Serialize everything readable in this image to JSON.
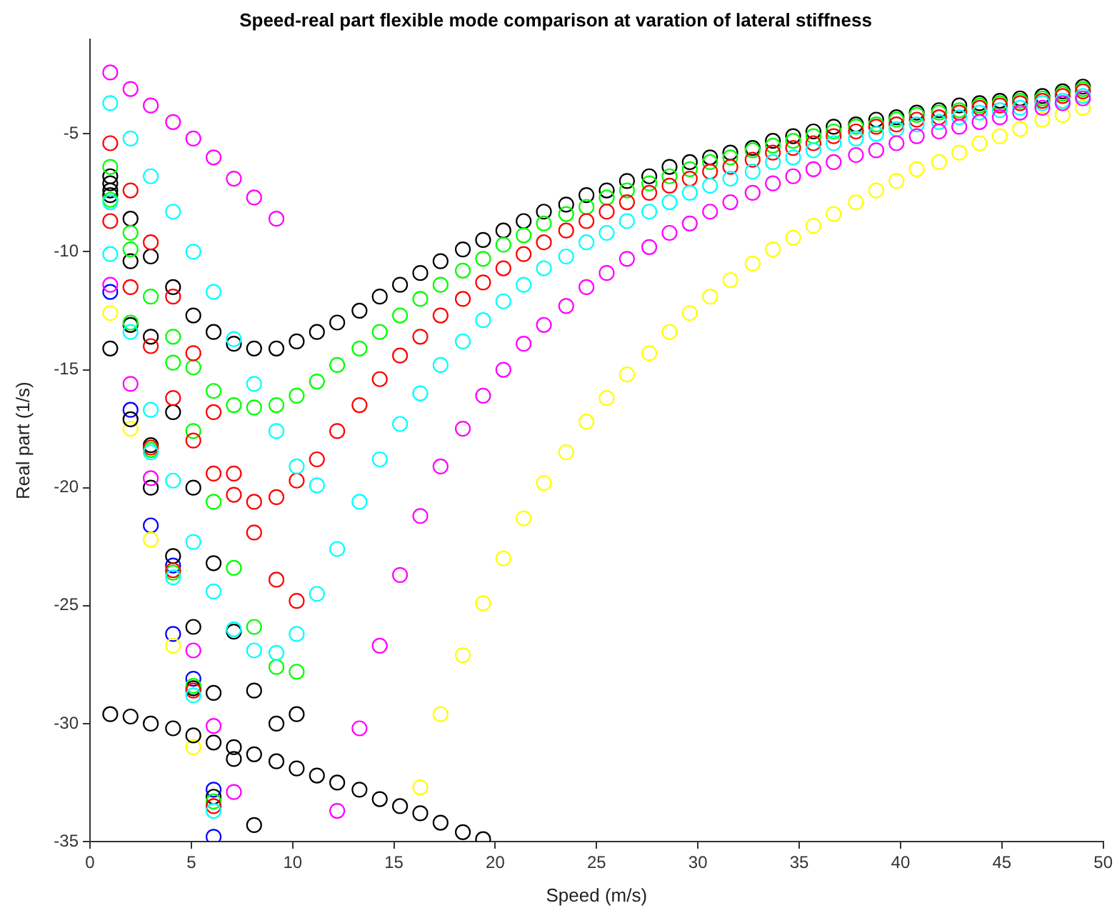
{
  "chart_data": {
    "type": "scatter",
    "title": "Speed-real part flexible mode comparison at varation of lateral stiffness",
    "xlabel": "Speed (m/s)",
    "ylabel": "Real part (1/s)",
    "xlim": [
      0,
      50
    ],
    "ylim": [
      -35,
      -1
    ],
    "xticks": [
      0,
      5,
      10,
      15,
      20,
      25,
      30,
      35,
      40,
      45,
      50
    ],
    "yticks": [
      -35,
      -30,
      -25,
      -20,
      -15,
      -10,
      -5
    ],
    "marker": "circle",
    "legend": false,
    "series": [
      {
        "color": "#ff00ff",
        "x": [
          1.0,
          1.0,
          2.0,
          2.0,
          3.0,
          3.0,
          4.1,
          5.1,
          5.1,
          6.1,
          6.1,
          7.1,
          7.1,
          8.1,
          9.2,
          12.2,
          13.3,
          14.3,
          15.3,
          16.3,
          17.3,
          18.4,
          19.4,
          20.4,
          21.4,
          22.4,
          23.5,
          24.5,
          25.5,
          26.5,
          27.6,
          28.6,
          29.6,
          30.6,
          31.6,
          32.7,
          33.7,
          34.7,
          35.7,
          36.7,
          37.8,
          38.8,
          39.8,
          40.8,
          41.9,
          42.9,
          43.9,
          44.9,
          45.9,
          47.0,
          48.0,
          49.0
        ],
        "values": [
          -2.4,
          -11.4,
          -3.1,
          -15.6,
          -3.8,
          -19.6,
          -4.5,
          -5.2,
          -26.9,
          -6.0,
          -30.1,
          -6.9,
          -32.9,
          -7.7,
          -8.6,
          -33.7,
          -30.2,
          -26.7,
          -23.7,
          -21.2,
          -19.1,
          -17.5,
          -16.1,
          -15.0,
          -13.9,
          -13.1,
          -12.3,
          -11.5,
          -10.9,
          -10.3,
          -9.8,
          -9.2,
          -8.8,
          -8.3,
          -7.9,
          -7.5,
          -7.1,
          -6.8,
          -6.5,
          -6.2,
          -5.9,
          -5.7,
          -5.4,
          -5.1,
          -4.9,
          -4.7,
          -4.5,
          -4.3,
          -4.1,
          -3.9,
          -3.7,
          -3.5
        ]
      },
      {
        "color": "#00ffff",
        "x": [
          1.0,
          1.0,
          1.0,
          2.0,
          2.0,
          3.0,
          3.0,
          3.0,
          4.1,
          4.1,
          4.1,
          5.1,
          5.1,
          5.1,
          6.1,
          6.1,
          6.1,
          7.1,
          7.1,
          8.1,
          8.1,
          9.2,
          9.2,
          10.2,
          10.2,
          11.2,
          11.2,
          12.2,
          13.3,
          14.3,
          15.3,
          16.3,
          17.3,
          18.4,
          19.4,
          20.4,
          21.4,
          22.4,
          23.5,
          24.5,
          25.5,
          26.5,
          27.6,
          28.6,
          29.6,
          30.6,
          31.6,
          32.7,
          33.7,
          34.7,
          35.7,
          36.7,
          37.8,
          38.8,
          39.8,
          40.8,
          41.9,
          42.9,
          43.9,
          44.9,
          45.9,
          47.0,
          48.0,
          49.0
        ],
        "values": [
          -3.7,
          -7.9,
          -10.1,
          -5.2,
          -13.4,
          -6.8,
          -16.7,
          -18.5,
          -8.3,
          -19.7,
          -23.8,
          -10.0,
          -22.3,
          -28.8,
          -11.7,
          -24.4,
          -33.7,
          -13.7,
          -26.0,
          -15.6,
          -26.9,
          -17.6,
          -27.0,
          -19.1,
          -26.2,
          -19.9,
          -24.5,
          -22.6,
          -20.6,
          -18.8,
          -17.3,
          -16.0,
          -14.8,
          -13.8,
          -12.9,
          -12.1,
          -11.4,
          -10.7,
          -10.2,
          -9.6,
          -9.2,
          -8.7,
          -8.3,
          -7.9,
          -7.5,
          -7.2,
          -6.9,
          -6.6,
          -6.2,
          -6.0,
          -5.7,
          -5.4,
          -5.2,
          -5.0,
          -4.8,
          -4.6,
          -4.5,
          -4.3,
          -4.1,
          -4.0,
          -3.9,
          -3.7,
          -3.6,
          -3.4
        ]
      },
      {
        "color": "#ff0000",
        "x": [
          1.0,
          1.0,
          2.0,
          2.0,
          3.0,
          3.0,
          3.0,
          4.1,
          4.1,
          4.1,
          5.1,
          5.1,
          5.1,
          6.1,
          6.1,
          6.1,
          7.1,
          7.1,
          8.1,
          8.1,
          9.2,
          9.2,
          10.2,
          10.2,
          11.2,
          12.2,
          13.3,
          14.3,
          15.3,
          16.3,
          17.3,
          18.4,
          19.4,
          20.4,
          21.4,
          22.4,
          23.5,
          24.5,
          25.5,
          26.5,
          27.6,
          28.6,
          29.6,
          30.6,
          31.6,
          32.7,
          33.7,
          34.7,
          35.7,
          36.7,
          37.8,
          38.8,
          39.8,
          40.8,
          41.9,
          42.9,
          43.9,
          44.9,
          45.9,
          47.0,
          48.0,
          49.0
        ],
        "values": [
          -5.4,
          -8.7,
          -7.4,
          -11.5,
          -9.6,
          -14.0,
          -18.3,
          -11.9,
          -16.2,
          -23.5,
          -14.3,
          -18.0,
          -28.6,
          -16.8,
          -19.4,
          -33.5,
          -19.4,
          -20.3,
          -20.6,
          -21.9,
          -20.4,
          -23.9,
          -19.7,
          -24.8,
          -18.8,
          -17.6,
          -16.5,
          -15.4,
          -14.4,
          -13.6,
          -12.7,
          -12.0,
          -11.3,
          -10.7,
          -10.1,
          -9.6,
          -9.1,
          -8.7,
          -8.3,
          -7.9,
          -7.5,
          -7.2,
          -6.9,
          -6.6,
          -6.4,
          -6.1,
          -5.8,
          -5.6,
          -5.4,
          -5.1,
          -4.9,
          -4.7,
          -4.6,
          -4.4,
          -4.3,
          -4.1,
          -3.9,
          -3.8,
          -3.7,
          -3.6,
          -3.4,
          -3.2
        ]
      },
      {
        "color": "#00ff00",
        "x": [
          1.0,
          1.0,
          2.0,
          2.0,
          2.0,
          3.0,
          3.0,
          4.1,
          4.1,
          4.1,
          5.1,
          5.1,
          5.1,
          6.1,
          6.1,
          6.1,
          7.1,
          7.1,
          8.1,
          8.1,
          9.2,
          9.2,
          10.2,
          10.2,
          11.2,
          12.2,
          13.3,
          14.3,
          15.3,
          16.3,
          17.3,
          18.4,
          19.4,
          20.4,
          21.4,
          22.4,
          23.5,
          24.5,
          25.5,
          26.5,
          27.6,
          28.6,
          29.6,
          30.6,
          31.6,
          32.7,
          33.7,
          34.7,
          35.7,
          36.7,
          37.8,
          38.8,
          39.8,
          40.8,
          41.9,
          42.9,
          43.9,
          44.9,
          45.9,
          47.0,
          48.0,
          49.0
        ],
        "values": [
          -6.4,
          -7.8,
          -9.2,
          -9.9,
          -13.0,
          -11.9,
          -18.4,
          -13.6,
          -14.7,
          -23.6,
          -14.9,
          -17.6,
          -28.4,
          -15.9,
          -20.6,
          -33.3,
          -16.5,
          -23.4,
          -16.6,
          -25.9,
          -16.5,
          -27.6,
          -16.1,
          -27.8,
          -15.5,
          -14.8,
          -14.1,
          -13.4,
          -12.7,
          -12.0,
          -11.4,
          -10.8,
          -10.3,
          -9.7,
          -9.3,
          -8.8,
          -8.4,
          -8.1,
          -7.7,
          -7.4,
          -7.1,
          -6.8,
          -6.5,
          -6.2,
          -6.0,
          -5.7,
          -5.5,
          -5.3,
          -5.1,
          -4.9,
          -4.7,
          -4.6,
          -4.4,
          -4.2,
          -4.1,
          -4.0,
          -3.8,
          -3.7,
          -3.6,
          -3.5,
          -3.3,
          -3.1
        ]
      },
      {
        "color": "#000000",
        "x": [
          1.0,
          1.0,
          1.0,
          1.0,
          1.0,
          1.0,
          2.0,
          2.0,
          2.0,
          2.0,
          2.0,
          3.0,
          3.0,
          3.0,
          3.0,
          3.0,
          4.1,
          4.1,
          4.1,
          4.1,
          5.1,
          5.1,
          5.1,
          5.1,
          5.1,
          6.1,
          6.1,
          6.1,
          6.1,
          6.1,
          7.1,
          7.1,
          7.1,
          7.1,
          8.1,
          8.1,
          8.1,
          8.1,
          9.2,
          9.2,
          9.2,
          10.2,
          10.2,
          10.2,
          11.2,
          11.2,
          12.2,
          12.2,
          13.3,
          13.3,
          14.3,
          14.3,
          15.3,
          15.3,
          16.3,
          16.3,
          17.3,
          17.3,
          18.4,
          18.4,
          19.4,
          19.4,
          20.4,
          21.4,
          22.4,
          23.5,
          24.5,
          25.5,
          26.5,
          27.6,
          28.6,
          29.6,
          30.6,
          31.6,
          32.7,
          33.7,
          34.7,
          35.7,
          36.7,
          37.8,
          38.8,
          39.8,
          40.8,
          41.9,
          42.9,
          43.9,
          44.9,
          45.9,
          47.0,
          48.0,
          49.0
        ],
        "values": [
          -6.8,
          -7.1,
          -7.4,
          -7.6,
          -14.1,
          -29.6,
          -8.6,
          -10.4,
          -13.1,
          -17.1,
          -29.7,
          -10.2,
          -13.6,
          -18.2,
          -20.0,
          -30.0,
          -11.5,
          -16.8,
          -22.9,
          -30.2,
          -12.7,
          -20.0,
          -25.9,
          -28.5,
          -30.5,
          -13.4,
          -23.2,
          -28.7,
          -30.8,
          -33.1,
          -13.9,
          -26.1,
          -31.0,
          -31.5,
          -14.1,
          -28.6,
          -31.3,
          -34.3,
          -14.1,
          -30.0,
          -31.6,
          -13.8,
          -29.6,
          -31.9,
          -13.4,
          -32.2,
          -13.0,
          -32.5,
          -12.5,
          -32.8,
          -11.9,
          -33.2,
          -11.4,
          -33.5,
          -10.9,
          -33.8,
          -10.4,
          -34.2,
          -9.9,
          -34.6,
          -9.5,
          -34.9,
          -9.1,
          -8.7,
          -8.3,
          -8.0,
          -7.6,
          -7.4,
          -7.0,
          -6.8,
          -6.4,
          -6.2,
          -6.0,
          -5.8,
          -5.6,
          -5.3,
          -5.1,
          -4.9,
          -4.7,
          -4.6,
          -4.4,
          -4.3,
          -4.1,
          -4.0,
          -3.8,
          -3.7,
          -3.6,
          -3.5,
          -3.4,
          -3.2,
          -3.0
        ]
      },
      {
        "color": "#ffff00",
        "x": [
          1.0,
          2.0,
          3.0,
          4.1,
          5.1,
          16.3,
          17.3,
          18.4,
          19.4,
          20.4,
          21.4,
          22.4,
          23.5,
          24.5,
          25.5,
          26.5,
          27.6,
          28.6,
          29.6,
          30.6,
          31.6,
          32.7,
          33.7,
          34.7,
          35.7,
          36.7,
          37.8,
          38.8,
          39.8,
          40.8,
          41.9,
          42.9,
          43.9,
          44.9,
          45.9,
          47.0,
          48.0,
          49.0
        ],
        "values": [
          -12.6,
          -17.5,
          -22.2,
          -26.7,
          -31.0,
          -32.7,
          -29.6,
          -27.1,
          -24.9,
          -23.0,
          -21.3,
          -19.8,
          -18.5,
          -17.2,
          -16.2,
          -15.2,
          -14.3,
          -13.4,
          -12.6,
          -11.9,
          -11.2,
          -10.5,
          -9.9,
          -9.4,
          -8.9,
          -8.4,
          -7.9,
          -7.4,
          -7.0,
          -6.5,
          -6.2,
          -5.8,
          -5.4,
          -5.1,
          -4.8,
          -4.4,
          -4.2,
          -3.9
        ]
      },
      {
        "color": "#0000ff",
        "x": [
          1.0,
          2.0,
          3.0,
          4.1,
          4.1,
          5.1,
          6.1,
          6.1
        ],
        "values": [
          -11.7,
          -16.7,
          -21.6,
          -23.3,
          -26.2,
          -28.1,
          -32.8,
          -34.8
        ]
      }
    ]
  }
}
